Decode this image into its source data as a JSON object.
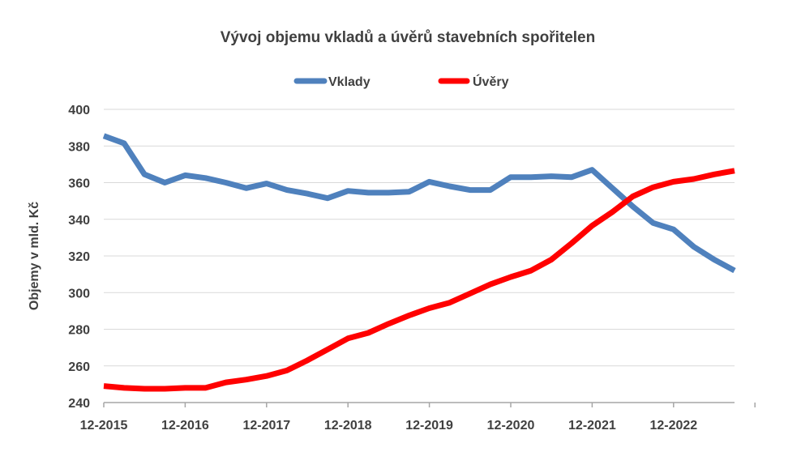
{
  "chart_data": {
    "type": "line",
    "title": "Vývoj objemu vkladů a úvěrů stavebních spořitelen",
    "xlabel": "",
    "ylabel": "Objemy v mld. Kč",
    "ylim": [
      240,
      400
    ],
    "yticks": [
      240,
      260,
      280,
      300,
      320,
      340,
      360,
      380,
      400
    ],
    "xtick_labels": [
      "12-2015",
      "12-2016",
      "12-2017",
      "12-2018",
      "12-2019",
      "12-2020",
      "12-2021",
      "12-2022"
    ],
    "grid": true,
    "legend_position": "top",
    "series": [
      {
        "name": "Vklady",
        "color": "#4f81bd",
        "values": [
          385.5,
          381.5,
          364.5,
          360,
          364,
          362.5,
          360,
          357,
          359.5,
          356,
          354,
          351.5,
          355.5,
          354.5,
          354.5,
          355,
          360.5,
          358,
          356,
          356,
          363,
          363,
          363.5,
          363,
          367,
          357,
          347,
          338,
          334.5,
          325,
          318,
          312
        ]
      },
      {
        "name": "Úvěry",
        "color": "#ff0000",
        "values": [
          249,
          248,
          247.5,
          247.5,
          248,
          248,
          251,
          252.5,
          254.5,
          257.5,
          263,
          269,
          275,
          278,
          283,
          287.5,
          291.5,
          294.5,
          299.5,
          304.5,
          308.5,
          312,
          318,
          327,
          336.5,
          344,
          352.5,
          357.5,
          360.5,
          362,
          364.5,
          366.5
        ]
      }
    ]
  }
}
